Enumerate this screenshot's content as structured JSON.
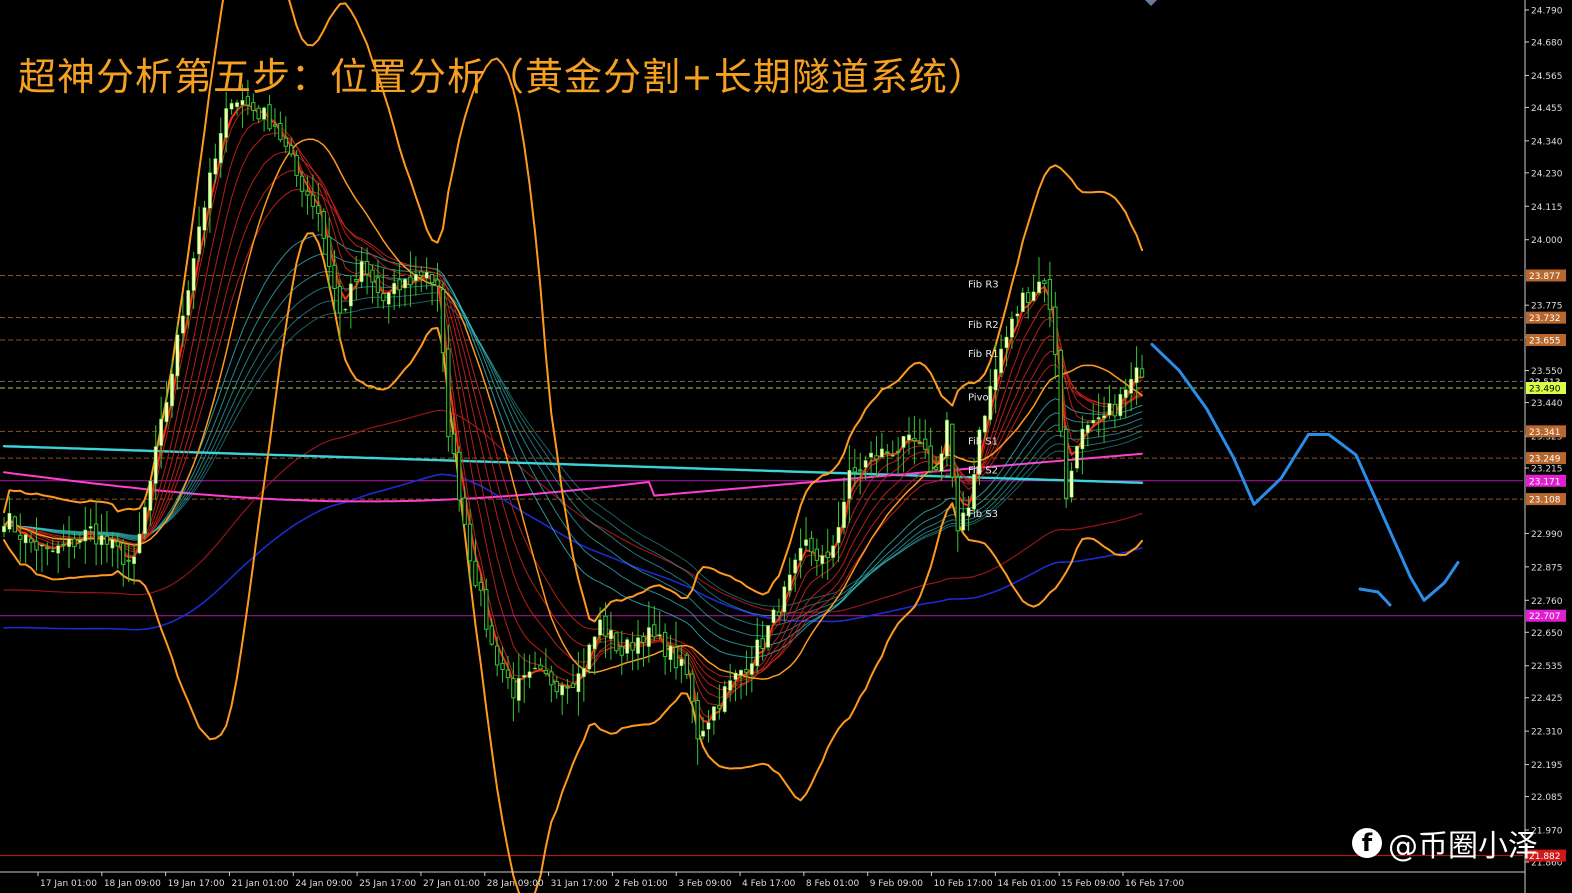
{
  "title": "超神分析第五步：位置分析（黄金分割+长期隧道系统）",
  "watermark": {
    "icon": "facebook-icon",
    "text": "@币圈小泽"
  },
  "colors": {
    "background": "#000000",
    "bull_candle": "#f4ffb0",
    "wick": "#36c636",
    "bollinger": "#ff9a1f",
    "red_ribbon": "#c8231c",
    "cyan_ribbon": "#3ad3d9",
    "long_ma_blue": "#1b2bd1",
    "long_ma_red": "#b0181c",
    "magenta": "#ff3fd2",
    "forecast": "#2a8de8",
    "axis_text": "#dddddd"
  },
  "chart_data": {
    "type": "candlestick",
    "ylim": [
      21.86,
      24.79
    ],
    "y_ticks": [
      "24.790",
      "24.680",
      "24.565",
      "24.455",
      "24.340",
      "24.230",
      "24.115",
      "24.000",
      "23.775",
      "23.665",
      "23.550",
      "23.440",
      "23.325",
      "23.215",
      "22.990",
      "22.875",
      "22.760",
      "22.650",
      "22.535",
      "22.425",
      "22.310",
      "22.195",
      "22.085",
      "21.970",
      "21.860"
    ],
    "x_ticks": [
      "17 Jan 01:00",
      "18 Jan 09:00",
      "19 Jan 17:00",
      "21 Jan 01:00",
      "24 Jan 09:00",
      "25 Jan 17:00",
      "27 Jan 01:00",
      "28 Jan 09:00",
      "31 Jan 17:00",
      "2 Feb 01:00",
      "3 Feb 09:00",
      "4 Feb 17:00",
      "8 Feb 01:00",
      "9 Feb 09:00",
      "10 Feb 17:00",
      "14 Feb 01:00",
      "15 Feb 09:00",
      "16 Feb 17:00"
    ],
    "price_levels": [
      {
        "value": 23.877,
        "label": "23.877",
        "bg": "#b8672d",
        "line": "#b8672d"
      },
      {
        "value": 23.732,
        "label": "23.732",
        "bg": "#b8672d",
        "line": "#b8672d"
      },
      {
        "value": 23.655,
        "label": "23.655",
        "bg": "#b8672d",
        "line": "#b8672d"
      },
      {
        "value": 23.513,
        "label": "23.513",
        "bg": "",
        "line": "#888888"
      },
      {
        "value": 23.49,
        "label": "23.490",
        "bg": "#d8ff45",
        "line": "#d8ff45"
      },
      {
        "value": 23.341,
        "label": "23.341",
        "bg": "#b8672d",
        "line": "#b8672d"
      },
      {
        "value": 23.249,
        "label": "23.249",
        "bg": "#b8672d",
        "line": "#b8672d"
      },
      {
        "value": 23.171,
        "label": "23.171",
        "bg": "#e020d0",
        "line": "#e020d0"
      },
      {
        "value": 23.108,
        "label": "23.108",
        "bg": "#b8672d",
        "line": "#b8672d"
      },
      {
        "value": 22.707,
        "label": "22.707",
        "bg": "#e020d0",
        "line": "#e020d0"
      },
      {
        "value": 21.882,
        "label": "21.882",
        "bg": "#d01818",
        "line": "#d01818"
      }
    ],
    "fib_labels": [
      {
        "name": "Fib R3",
        "value": 23.85
      },
      {
        "name": "Fib R2",
        "value": 23.71
      },
      {
        "name": "Fib R1",
        "value": 23.61
      },
      {
        "name": "Pivot",
        "value": 23.46
      },
      {
        "name": "Fib S1",
        "value": 23.31
      },
      {
        "name": "Fib S2",
        "value": 23.21
      },
      {
        "name": "Fib S3",
        "value": 23.06
      }
    ],
    "close_anchors": [
      [
        0,
        23.05
      ],
      [
        4,
        22.97
      ],
      [
        8,
        22.92
      ],
      [
        12,
        22.95
      ],
      [
        16,
        23.0
      ],
      [
        20,
        22.94
      ],
      [
        24,
        22.88
      ],
      [
        30,
        23.45
      ],
      [
        36,
        24.05
      ],
      [
        42,
        24.5
      ],
      [
        46,
        24.45
      ],
      [
        50,
        24.4
      ],
      [
        54,
        24.22
      ],
      [
        58,
        24.1
      ],
      [
        62,
        23.74
      ],
      [
        66,
        23.9
      ],
      [
        70,
        23.79
      ],
      [
        74,
        23.85
      ],
      [
        78,
        23.9
      ],
      [
        80,
        23.82
      ],
      [
        82,
        23.35
      ],
      [
        86,
        22.92
      ],
      [
        90,
        22.6
      ],
      [
        94,
        22.45
      ],
      [
        98,
        22.5
      ],
      [
        102,
        22.48
      ],
      [
        106,
        22.5
      ],
      [
        110,
        22.68
      ],
      [
        114,
        22.58
      ],
      [
        118,
        22.65
      ],
      [
        122,
        22.6
      ],
      [
        126,
        22.5
      ],
      [
        128,
        22.3
      ],
      [
        132,
        22.42
      ],
      [
        136,
        22.52
      ],
      [
        140,
        22.62
      ],
      [
        144,
        22.78
      ],
      [
        148,
        22.95
      ],
      [
        152,
        22.88
      ],
      [
        156,
        23.18
      ],
      [
        160,
        23.25
      ],
      [
        164,
        23.28
      ],
      [
        168,
        23.3
      ],
      [
        172,
        23.2
      ],
      [
        174,
        23.38
      ],
      [
        176,
        22.98
      ],
      [
        178,
        23.08
      ],
      [
        180,
        23.35
      ],
      [
        184,
        23.62
      ],
      [
        188,
        23.8
      ],
      [
        192,
        23.87
      ],
      [
        194,
        23.62
      ],
      [
        196,
        23.1
      ],
      [
        198,
        23.32
      ],
      [
        202,
        23.36
      ],
      [
        206,
        23.45
      ],
      [
        210,
        23.56
      ]
    ],
    "forecast_path": [
      [
        23.64,
        0
      ],
      [
        23.55,
        8
      ],
      [
        23.42,
        16
      ],
      [
        23.25,
        24
      ],
      [
        23.09,
        30
      ],
      [
        23.18,
        38
      ],
      [
        23.33,
        46
      ],
      [
        23.33,
        52
      ],
      [
        23.26,
        60
      ],
      [
        23.05,
        68
      ],
      [
        22.84,
        76
      ],
      [
        22.76,
        80
      ],
      [
        22.82,
        86
      ],
      [
        22.89,
        90
      ]
    ]
  }
}
